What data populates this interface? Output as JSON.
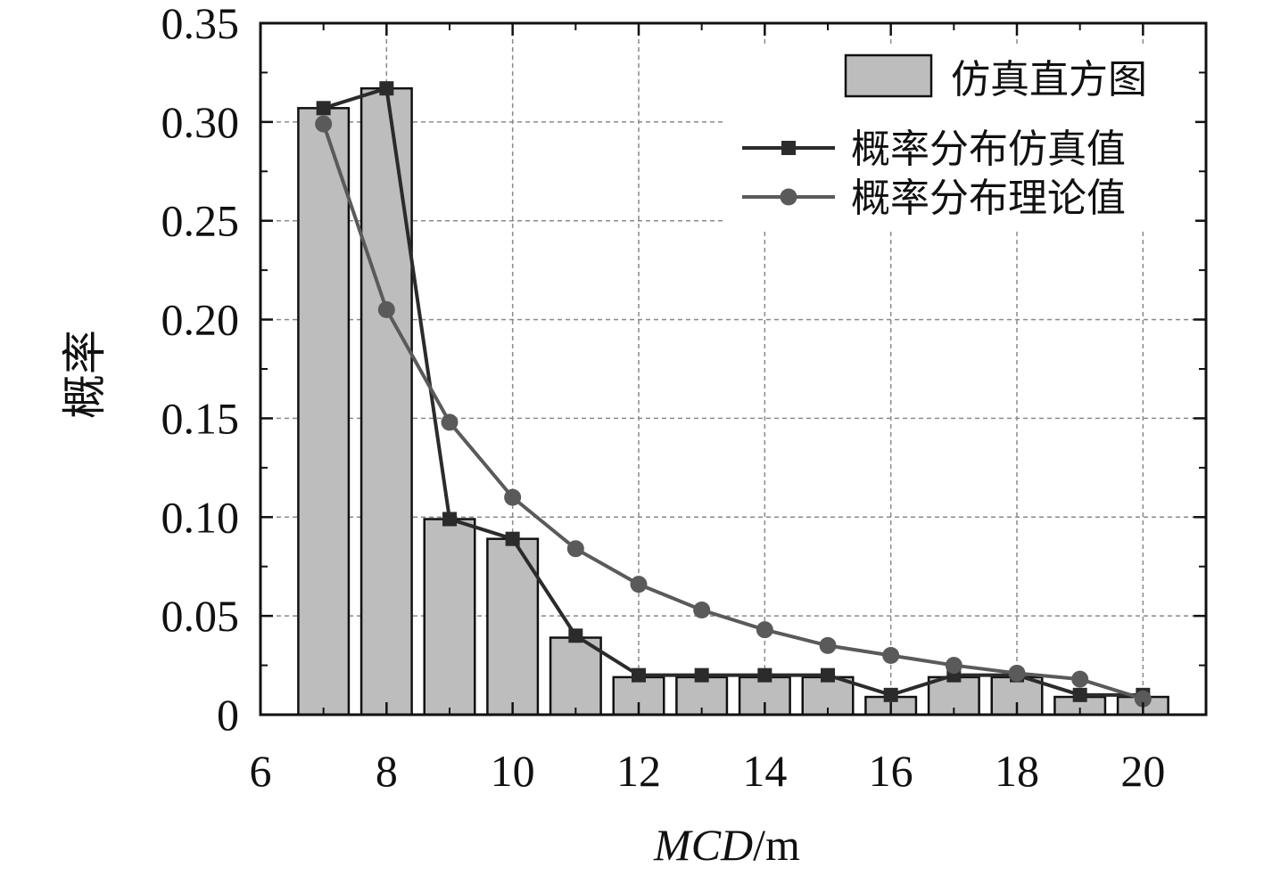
{
  "chart_data": {
    "type": "bar",
    "xlabel_italic": "MCD",
    "xlabel_unit": "/m",
    "ylabel": "概率",
    "xlim": [
      6,
      21
    ],
    "ylim": [
      0,
      0.35
    ],
    "x_ticks": [
      "6",
      "8",
      "10",
      "12",
      "14",
      "16",
      "18",
      "20"
    ],
    "y_ticks": [
      "0",
      "0.05",
      "0.10",
      "0.15",
      "0.20",
      "0.25",
      "0.30",
      "0.35"
    ],
    "grid": true,
    "legend_position": "top-right",
    "x": [
      7,
      8,
      9,
      10,
      11,
      12,
      13,
      14,
      15,
      16,
      17,
      18,
      19,
      20
    ],
    "series": [
      {
        "name": "仿真直方图",
        "kind": "bar",
        "color": "#bdbdbd",
        "values": [
          0.307,
          0.317,
          0.099,
          0.089,
          0.039,
          0.019,
          0.019,
          0.019,
          0.019,
          0.009,
          0.019,
          0.019,
          0.009,
          0.009
        ]
      },
      {
        "name": "概率分布仿真值",
        "kind": "line",
        "marker": "square",
        "color": "#2b2b2b",
        "values": [
          0.307,
          0.317,
          0.099,
          0.089,
          0.04,
          0.02,
          0.02,
          0.02,
          0.02,
          0.01,
          0.02,
          0.02,
          0.01,
          0.01
        ]
      },
      {
        "name": "概率分布理论值",
        "kind": "line",
        "marker": "circle",
        "color": "#5a5a5a",
        "values": [
          0.299,
          0.205,
          0.148,
          0.11,
          0.084,
          0.066,
          0.053,
          0.043,
          0.035,
          0.03,
          0.025,
          0.021,
          0.018,
          0.008
        ]
      }
    ]
  }
}
